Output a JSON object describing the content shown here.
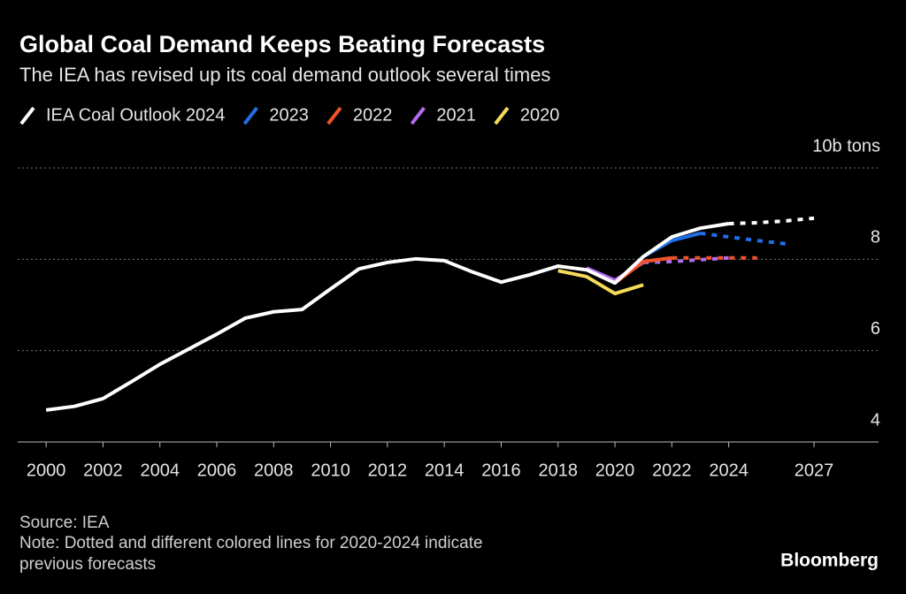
{
  "chart_data": {
    "type": "line",
    "title": "Global Coal Demand Keeps Beating Forecasts",
    "subtitle": "The IEA has revised up its coal demand outlook several times",
    "x": [
      2000,
      2001,
      2002,
      2003,
      2004,
      2005,
      2006,
      2007,
      2008,
      2009,
      2010,
      2011,
      2012,
      2013,
      2014,
      2015,
      2016,
      2017,
      2018,
      2019,
      2020,
      2021,
      2022,
      2023,
      2024,
      2025,
      2026,
      2027
    ],
    "xlim": [
      1999,
      2029.27
    ],
    "xticks": [
      2000,
      2002,
      2004,
      2006,
      2008,
      2010,
      2012,
      2014,
      2016,
      2018,
      2020,
      2022,
      2024,
      2027
    ],
    "ylim": [
      4,
      10
    ],
    "yticks": [
      4,
      6,
      8,
      {
        "value": 10,
        "label": "10b tons"
      }
    ],
    "grid": true,
    "series": [
      {
        "name": "IEA Coal Outlook 2024",
        "color": "#ffffff",
        "dashed_from": 2024,
        "values": [
          4.7,
          4.78,
          4.95,
          5.32,
          5.7,
          6.03,
          6.36,
          6.71,
          6.85,
          6.9,
          7.35,
          7.79,
          7.93,
          8.01,
          7.97,
          7.72,
          7.5,
          7.66,
          7.85,
          7.77,
          7.48,
          8.06,
          8.49,
          8.68,
          8.78,
          8.8,
          8.84,
          8.9
        ]
      },
      {
        "name": "2023",
        "color": "#1f6fe8",
        "dashed_from": 2023,
        "values": [
          null,
          null,
          null,
          null,
          null,
          null,
          null,
          null,
          null,
          null,
          null,
          null,
          null,
          null,
          null,
          null,
          null,
          null,
          null,
          null,
          null,
          8.06,
          8.41,
          8.57,
          8.49,
          8.41,
          8.34,
          null
        ]
      },
      {
        "name": "2022",
        "color": "#f0522b",
        "dashed_from": 2022,
        "values": [
          null,
          null,
          null,
          null,
          null,
          null,
          null,
          null,
          null,
          null,
          null,
          null,
          null,
          null,
          null,
          null,
          null,
          null,
          null,
          null,
          7.48,
          7.95,
          8.03,
          8.03,
          8.03,
          8.03,
          null,
          null
        ]
      },
      {
        "name": "2021",
        "color": "#b36cf0",
        "dashed_from": 2021,
        "values": [
          null,
          null,
          null,
          null,
          null,
          null,
          null,
          null,
          null,
          null,
          null,
          null,
          null,
          null,
          null,
          null,
          null,
          null,
          null,
          7.81,
          7.54,
          7.93,
          7.95,
          7.99,
          8.03,
          null,
          null,
          null
        ]
      },
      {
        "name": "2020",
        "color": "#f5dc5a",
        "values": [
          null,
          null,
          null,
          null,
          null,
          null,
          null,
          null,
          null,
          null,
          null,
          null,
          null,
          null,
          null,
          null,
          null,
          null,
          7.75,
          7.62,
          7.25,
          7.44,
          null,
          null,
          null,
          null,
          null,
          null
        ]
      }
    ],
    "source": "Source: IEA",
    "note": [
      "Note: Dotted and different colored lines for 2020-2024 indicate",
      "previous forecasts"
    ],
    "brand": "Bloomberg"
  }
}
